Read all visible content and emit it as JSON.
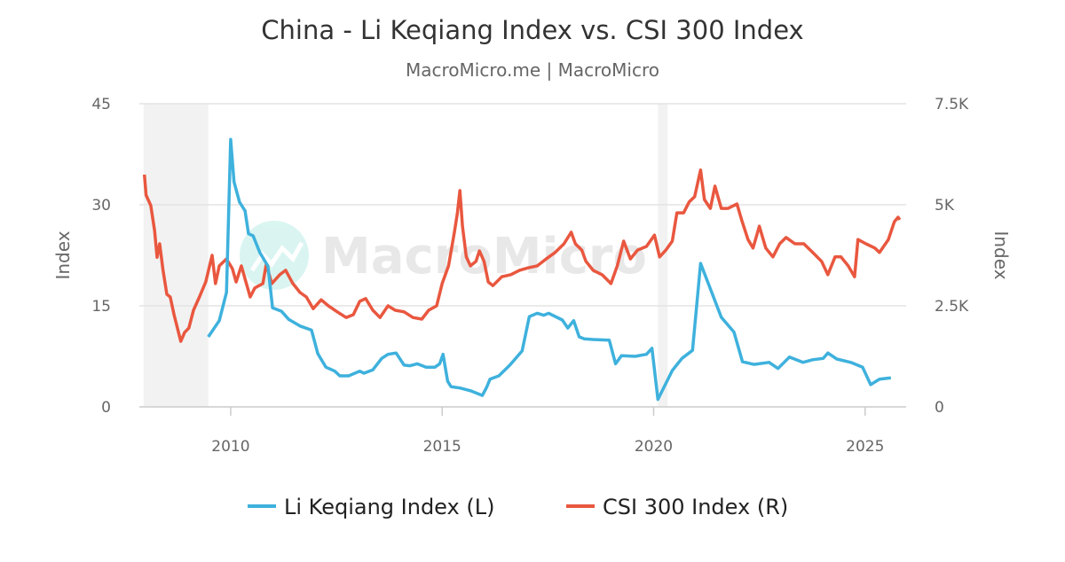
{
  "chart_data": {
    "type": "line",
    "title": "China - Li Keqiang Index vs. CSI 300 Index",
    "subtitle": "MacroMicro.me | MacroMicro",
    "watermark": "MacroMicro",
    "x_range": [
      2007.84,
      2025.97
    ],
    "x_ticks": [
      {
        "value": 2010,
        "label": "2010"
      },
      {
        "value": 2015,
        "label": "2015"
      },
      {
        "value": 2020,
        "label": "2020"
      },
      {
        "value": 2025,
        "label": "2025"
      }
    ],
    "y_left": {
      "label": "Index",
      "range": [
        0,
        45
      ],
      "ticks": [
        {
          "value": 0,
          "label": "0"
        },
        {
          "value": 15,
          "label": "15"
        },
        {
          "value": 30,
          "label": "30"
        },
        {
          "value": 45,
          "label": "45"
        }
      ]
    },
    "y_right": {
      "label": "Index",
      "range": [
        0,
        7500
      ],
      "ticks": [
        {
          "value": 0,
          "label": "0"
        },
        {
          "value": 2500,
          "label": "2.5K"
        },
        {
          "value": 5000,
          "label": "5K"
        },
        {
          "value": 7500,
          "label": "7.5K"
        }
      ]
    },
    "grid": true,
    "legend_position": "bottom",
    "shaded_periods": [
      [
        2007.94,
        2009.47
      ],
      [
        2020.1,
        2020.33
      ]
    ],
    "series": [
      {
        "name": "Li Keqiang Index (L)",
        "axis": "left",
        "color": "#3eb1dd",
        "points": [
          [
            2009.47,
            10.4
          ],
          [
            2009.73,
            12.8
          ],
          [
            2009.9,
            17
          ],
          [
            2010.0,
            39.7
          ],
          [
            2010.08,
            33.4
          ],
          [
            2010.21,
            30.4
          ],
          [
            2010.34,
            29.1
          ],
          [
            2010.42,
            25.7
          ],
          [
            2010.53,
            25.4
          ],
          [
            2010.69,
            22.9
          ],
          [
            2010.88,
            20.9
          ],
          [
            2010.99,
            14.7
          ],
          [
            2011.2,
            14.2
          ],
          [
            2011.37,
            13.0
          ],
          [
            2011.64,
            12.0
          ],
          [
            2011.91,
            11.4
          ],
          [
            2012.06,
            7.9
          ],
          [
            2012.25,
            5.9
          ],
          [
            2012.46,
            5.3
          ],
          [
            2012.58,
            4.6
          ],
          [
            2012.79,
            4.6
          ],
          [
            2013.05,
            5.3
          ],
          [
            2013.15,
            5.0
          ],
          [
            2013.36,
            5.5
          ],
          [
            2013.57,
            7.2
          ],
          [
            2013.72,
            7.8
          ],
          [
            2013.91,
            8.0
          ],
          [
            2014.1,
            6.2
          ],
          [
            2014.24,
            6.1
          ],
          [
            2014.41,
            6.4
          ],
          [
            2014.62,
            5.9
          ],
          [
            2014.83,
            5.9
          ],
          [
            2014.94,
            6.4
          ],
          [
            2015.02,
            7.8
          ],
          [
            2015.13,
            3.8
          ],
          [
            2015.21,
            3.0
          ],
          [
            2015.42,
            2.8
          ],
          [
            2015.67,
            2.4
          ],
          [
            2015.95,
            1.7
          ],
          [
            2016.05,
            2.9
          ],
          [
            2016.13,
            4.1
          ],
          [
            2016.34,
            4.6
          ],
          [
            2016.6,
            6.2
          ],
          [
            2016.89,
            8.3
          ],
          [
            2017.06,
            13.4
          ],
          [
            2017.25,
            13.9
          ],
          [
            2017.4,
            13.6
          ],
          [
            2017.52,
            13.9
          ],
          [
            2017.84,
            12.9
          ],
          [
            2017.97,
            11.7
          ],
          [
            2018.11,
            12.8
          ],
          [
            2018.24,
            10.4
          ],
          [
            2018.36,
            10.1
          ],
          [
            2018.57,
            10.0
          ],
          [
            2018.95,
            9.9
          ],
          [
            2019.1,
            6.4
          ],
          [
            2019.24,
            7.6
          ],
          [
            2019.56,
            7.5
          ],
          [
            2019.83,
            7.8
          ],
          [
            2019.96,
            8.7
          ],
          [
            2020.1,
            1.1
          ],
          [
            2020.44,
            5.4
          ],
          [
            2020.67,
            7.2
          ],
          [
            2020.92,
            8.4
          ],
          [
            2021.11,
            21.3
          ],
          [
            2021.6,
            13.3
          ],
          [
            2021.9,
            11.1
          ],
          [
            2022.1,
            6.7
          ],
          [
            2022.37,
            6.3
          ],
          [
            2022.73,
            6.6
          ],
          [
            2022.94,
            5.7
          ],
          [
            2023.21,
            7.4
          ],
          [
            2023.53,
            6.6
          ],
          [
            2023.76,
            7.0
          ],
          [
            2024.01,
            7.2
          ],
          [
            2024.12,
            8.0
          ],
          [
            2024.33,
            7.1
          ],
          [
            2024.66,
            6.6
          ],
          [
            2024.94,
            5.9
          ],
          [
            2025.13,
            3.3
          ],
          [
            2025.34,
            4.1
          ],
          [
            2025.61,
            4.3
          ]
        ]
      },
      {
        "name": "CSI 300 Index (R)",
        "axis": "right",
        "color": "#e9573f",
        "points": [
          [
            2007.96,
            5745
          ],
          [
            2008.0,
            5240
          ],
          [
            2008.11,
            4980
          ],
          [
            2008.2,
            4360
          ],
          [
            2008.26,
            3700
          ],
          [
            2008.32,
            4035
          ],
          [
            2008.4,
            3380
          ],
          [
            2008.49,
            2785
          ],
          [
            2008.57,
            2720
          ],
          [
            2008.66,
            2280
          ],
          [
            2008.74,
            1950
          ],
          [
            2008.82,
            1620
          ],
          [
            2008.91,
            1840
          ],
          [
            2009.01,
            1950
          ],
          [
            2009.12,
            2390
          ],
          [
            2009.26,
            2720
          ],
          [
            2009.41,
            3090
          ],
          [
            2009.56,
            3750
          ],
          [
            2009.64,
            3050
          ],
          [
            2009.73,
            3490
          ],
          [
            2009.9,
            3660
          ],
          [
            2010.04,
            3420
          ],
          [
            2010.13,
            3090
          ],
          [
            2010.25,
            3490
          ],
          [
            2010.46,
            2720
          ],
          [
            2010.57,
            2940
          ],
          [
            2010.76,
            3050
          ],
          [
            2010.84,
            3530
          ],
          [
            2010.97,
            3050
          ],
          [
            2011.16,
            3270
          ],
          [
            2011.3,
            3380
          ],
          [
            2011.47,
            3050
          ],
          [
            2011.64,
            2830
          ],
          [
            2011.79,
            2720
          ],
          [
            2011.95,
            2430
          ],
          [
            2012.14,
            2650
          ],
          [
            2012.31,
            2500
          ],
          [
            2012.52,
            2350
          ],
          [
            2012.73,
            2210
          ],
          [
            2012.9,
            2280
          ],
          [
            2013.05,
            2610
          ],
          [
            2013.19,
            2680
          ],
          [
            2013.36,
            2390
          ],
          [
            2013.53,
            2210
          ],
          [
            2013.72,
            2500
          ],
          [
            2013.89,
            2390
          ],
          [
            2014.1,
            2350
          ],
          [
            2014.31,
            2210
          ],
          [
            2014.52,
            2170
          ],
          [
            2014.68,
            2390
          ],
          [
            2014.87,
            2500
          ],
          [
            2015.0,
            3050
          ],
          [
            2015.15,
            3490
          ],
          [
            2015.29,
            4320
          ],
          [
            2015.36,
            4800
          ],
          [
            2015.42,
            5350
          ],
          [
            2015.48,
            4470
          ],
          [
            2015.57,
            3710
          ],
          [
            2015.67,
            3490
          ],
          [
            2015.8,
            3600
          ],
          [
            2015.88,
            3860
          ],
          [
            2015.99,
            3600
          ],
          [
            2016.09,
            3090
          ],
          [
            2016.2,
            3000
          ],
          [
            2016.41,
            3220
          ],
          [
            2016.62,
            3270
          ],
          [
            2016.83,
            3380
          ],
          [
            2017.04,
            3440
          ],
          [
            2017.25,
            3490
          ],
          [
            2017.46,
            3660
          ],
          [
            2017.67,
            3820
          ],
          [
            2017.88,
            4035
          ],
          [
            2018.05,
            4320
          ],
          [
            2018.15,
            4035
          ],
          [
            2018.3,
            3880
          ],
          [
            2018.4,
            3600
          ],
          [
            2018.57,
            3380
          ],
          [
            2018.78,
            3270
          ],
          [
            2018.99,
            3050
          ],
          [
            2019.14,
            3490
          ],
          [
            2019.29,
            4100
          ],
          [
            2019.45,
            3660
          ],
          [
            2019.62,
            3880
          ],
          [
            2019.83,
            3970
          ],
          [
            2020.02,
            4250
          ],
          [
            2020.14,
            3710
          ],
          [
            2020.29,
            3880
          ],
          [
            2020.44,
            4100
          ],
          [
            2020.55,
            4800
          ],
          [
            2020.71,
            4800
          ],
          [
            2020.84,
            5070
          ],
          [
            2020.97,
            5200
          ],
          [
            2021.11,
            5860
          ],
          [
            2021.2,
            5130
          ],
          [
            2021.34,
            4910
          ],
          [
            2021.45,
            5460
          ],
          [
            2021.6,
            4910
          ],
          [
            2021.76,
            4910
          ],
          [
            2021.97,
            5020
          ],
          [
            2022.08,
            4630
          ],
          [
            2022.23,
            4140
          ],
          [
            2022.35,
            3930
          ],
          [
            2022.5,
            4470
          ],
          [
            2022.65,
            3930
          ],
          [
            2022.82,
            3710
          ],
          [
            2022.98,
            4035
          ],
          [
            2023.13,
            4190
          ],
          [
            2023.34,
            4035
          ],
          [
            2023.55,
            4035
          ],
          [
            2023.76,
            3820
          ],
          [
            2023.97,
            3600
          ],
          [
            2024.12,
            3270
          ],
          [
            2024.29,
            3710
          ],
          [
            2024.43,
            3710
          ],
          [
            2024.6,
            3490
          ],
          [
            2024.75,
            3220
          ],
          [
            2024.83,
            4140
          ],
          [
            2025.02,
            4035
          ],
          [
            2025.23,
            3930
          ],
          [
            2025.34,
            3820
          ],
          [
            2025.55,
            4140
          ],
          [
            2025.69,
            4580
          ],
          [
            2025.78,
            4690
          ],
          [
            2025.82,
            4630
          ]
        ]
      }
    ]
  }
}
